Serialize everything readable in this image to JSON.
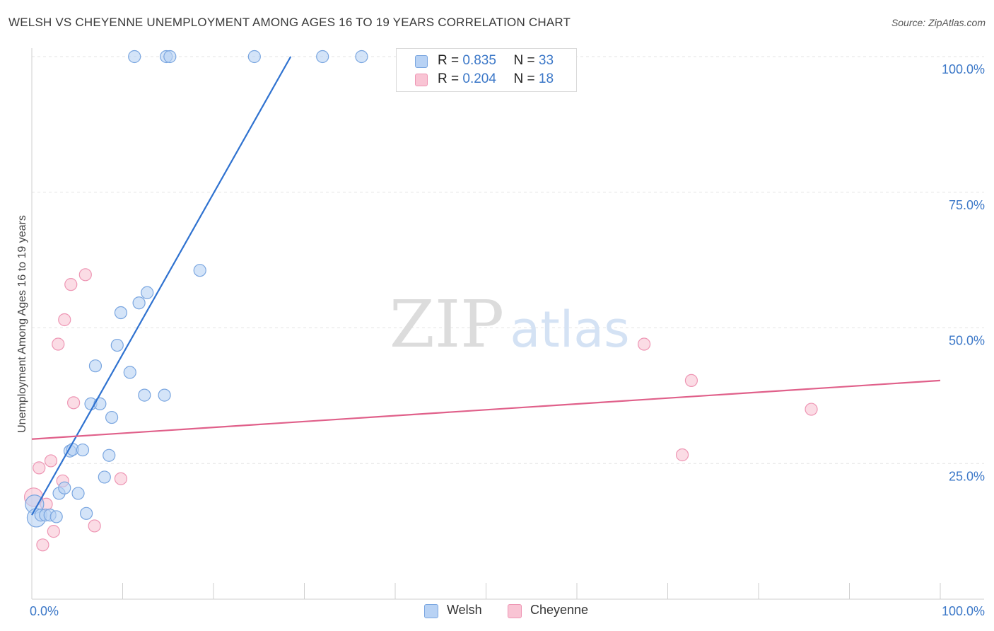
{
  "header": {
    "title": "WELSH VS CHEYENNE UNEMPLOYMENT AMONG AGES 16 TO 19 YEARS CORRELATION CHART",
    "source": "Source: ZipAtlas.com"
  },
  "watermark": {
    "zip": "ZIP",
    "atlas": "atlas"
  },
  "legend": {
    "welsh": {
      "r_label": "R =",
      "r_value": "0.835",
      "n_label": "N =",
      "n_value": "33"
    },
    "cheyenne": {
      "r_label": "R =",
      "r_value": "0.204",
      "n_label": "N =",
      "n_value": "18"
    }
  },
  "colors": {
    "welsh_fill": "#b8d2f4",
    "welsh_stroke": "#7aa6e0",
    "welsh_line": "#2f72d0",
    "cheyenne_fill": "#f9c4d4",
    "cheyenne_stroke": "#ee96b4",
    "cheyenne_line": "#e0608a",
    "axis_text": "#3c78c8"
  },
  "chart_data": {
    "type": "scatter",
    "title": "WELSH VS CHEYENNE UNEMPLOYMENT AMONG AGES 16 TO 19 YEARS CORRELATION CHART",
    "xlabel": "",
    "ylabel": "Unemployment Among Ages 16 to 19 years",
    "xlim": [
      0,
      100
    ],
    "ylim": [
      0,
      100
    ],
    "x_tick_labels": [
      "0.0%",
      "100.0%"
    ],
    "y_ticks": [
      {
        "value": 25,
        "label": "25.0%"
      },
      {
        "value": 50,
        "label": "50.0%"
      },
      {
        "value": 75,
        "label": "75.0%"
      },
      {
        "value": 100,
        "label": "100.0%"
      }
    ],
    "grid": true,
    "series": [
      {
        "name": "Welsh",
        "r": 0.835,
        "n": 33,
        "trendline": {
          "x": [
            0.0,
            28.5
          ],
          "y": [
            15.5,
            100.0
          ]
        },
        "points": [
          {
            "x": 0.3,
            "y": 17.5,
            "big": true
          },
          {
            "x": 0.5,
            "y": 15.0,
            "big": true
          },
          {
            "x": 1.0,
            "y": 15.5
          },
          {
            "x": 1.5,
            "y": 15.5
          },
          {
            "x": 2.0,
            "y": 15.5
          },
          {
            "x": 2.7,
            "y": 15.2
          },
          {
            "x": 3.0,
            "y": 19.5
          },
          {
            "x": 3.6,
            "y": 20.5
          },
          {
            "x": 4.2,
            "y": 27.3
          },
          {
            "x": 4.5,
            "y": 27.6
          },
          {
            "x": 5.1,
            "y": 19.5
          },
          {
            "x": 5.6,
            "y": 27.5
          },
          {
            "x": 6.0,
            "y": 15.8
          },
          {
            "x": 6.5,
            "y": 36.0
          },
          {
            "x": 7.0,
            "y": 43.0
          },
          {
            "x": 7.5,
            "y": 36.0
          },
          {
            "x": 8.0,
            "y": 22.5
          },
          {
            "x": 8.5,
            "y": 26.5
          },
          {
            "x": 8.8,
            "y": 33.5
          },
          {
            "x": 9.4,
            "y": 46.8
          },
          {
            "x": 9.8,
            "y": 52.8
          },
          {
            "x": 10.8,
            "y": 41.8
          },
          {
            "x": 11.3,
            "y": 100.0
          },
          {
            "x": 11.8,
            "y": 54.6
          },
          {
            "x": 12.4,
            "y": 37.6
          },
          {
            "x": 12.7,
            "y": 56.5
          },
          {
            "x": 14.6,
            "y": 37.6
          },
          {
            "x": 14.8,
            "y": 100.0
          },
          {
            "x": 15.2,
            "y": 100.0
          },
          {
            "x": 18.5,
            "y": 60.6
          },
          {
            "x": 24.5,
            "y": 100.0
          },
          {
            "x": 32.0,
            "y": 100.0
          },
          {
            "x": 36.3,
            "y": 100.0
          }
        ]
      },
      {
        "name": "Cheyenne",
        "r": 0.204,
        "n": 18,
        "trendline": {
          "x": [
            0.0,
            100.0
          ],
          "y": [
            29.5,
            40.3
          ]
        },
        "points": [
          {
            "x": 0.2,
            "y": 18.8,
            "big": true
          },
          {
            "x": 0.8,
            "y": 24.2
          },
          {
            "x": 1.2,
            "y": 10.0
          },
          {
            "x": 1.6,
            "y": 17.5
          },
          {
            "x": 2.1,
            "y": 25.5
          },
          {
            "x": 2.4,
            "y": 12.5
          },
          {
            "x": 2.9,
            "y": 47.0
          },
          {
            "x": 3.4,
            "y": 21.8
          },
          {
            "x": 3.6,
            "y": 51.5
          },
          {
            "x": 4.3,
            "y": 58.0
          },
          {
            "x": 4.6,
            "y": 36.2
          },
          {
            "x": 5.9,
            "y": 59.8
          },
          {
            "x": 6.9,
            "y": 13.5
          },
          {
            "x": 9.8,
            "y": 22.2
          },
          {
            "x": 67.4,
            "y": 47.0
          },
          {
            "x": 71.6,
            "y": 26.6
          },
          {
            "x": 72.6,
            "y": 40.3
          },
          {
            "x": 85.8,
            "y": 35.0
          }
        ]
      }
    ],
    "legend": [
      "Welsh",
      "Cheyenne"
    ]
  }
}
